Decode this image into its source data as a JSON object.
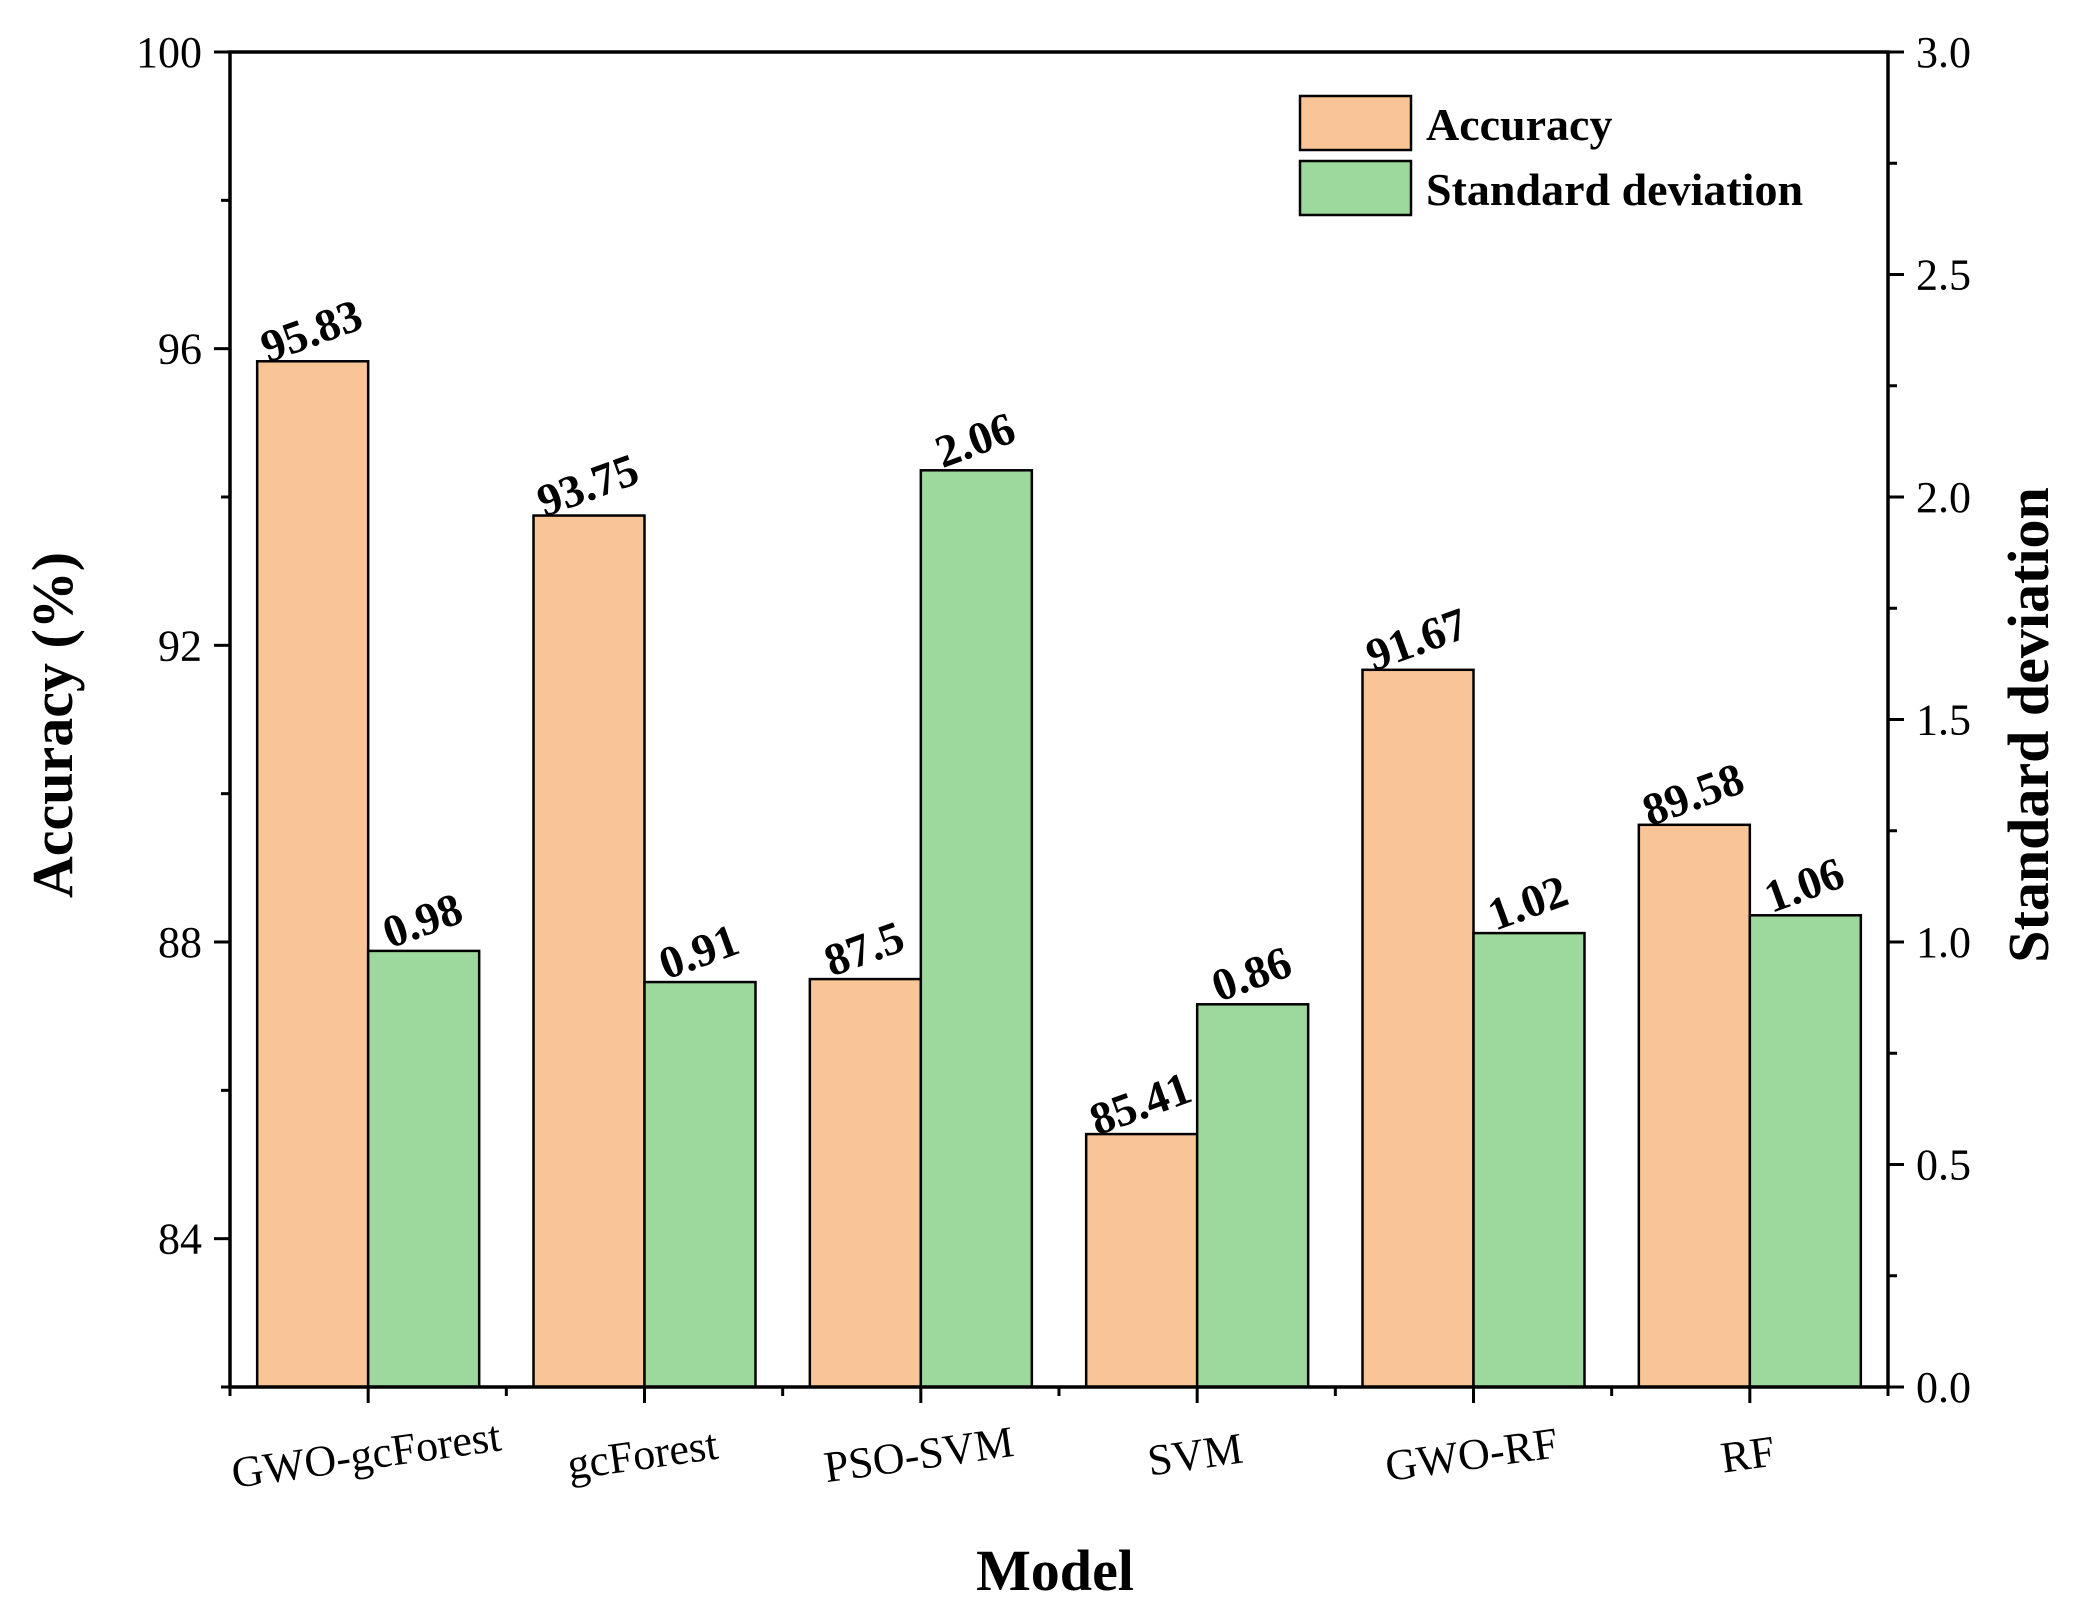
{
  "chart_data": {
    "type": "bar",
    "title": "",
    "xlabel": "Model",
    "ylabel": "Accuracy (%)",
    "y2label": "Standard deviation",
    "categories": [
      "GWO-gcForest",
      "gcForest",
      "PSO-SVM",
      "SVM",
      "GWO-RF",
      "RF"
    ],
    "series": [
      {
        "name": "Accuracy",
        "axis": "left",
        "color": "#FAC596",
        "values": [
          95.83,
          93.75,
          87.5,
          85.41,
          91.67,
          89.58
        ],
        "labels": [
          "95.83",
          "93.75",
          "87.5",
          "85.41",
          "91.67",
          "89.58"
        ]
      },
      {
        "name": "Standard deviation",
        "axis": "right",
        "color": "#9DD89C",
        "values": [
          0.98,
          0.91,
          2.06,
          0.86,
          1.02,
          1.06
        ],
        "labels": [
          "0.98",
          "0.91",
          "2.06",
          "0.86",
          "1.02",
          "1.06"
        ]
      }
    ],
    "ylim": [
      82,
      100
    ],
    "y2lim": [
      0,
      3.0
    ],
    "yticks": [
      84,
      88,
      92,
      96,
      100
    ],
    "yticklabels": [
      "84",
      "88",
      "92",
      "96",
      "100"
    ],
    "y2ticks": [
      0,
      0.5,
      1.0,
      1.5,
      2.0,
      2.5,
      3.0
    ],
    "y2ticklabels": [
      "0.0",
      "0.5",
      "1.0",
      "1.5",
      "2.0",
      "2.5",
      "3.0"
    ],
    "legend_position": "top-right",
    "grid": false
  }
}
